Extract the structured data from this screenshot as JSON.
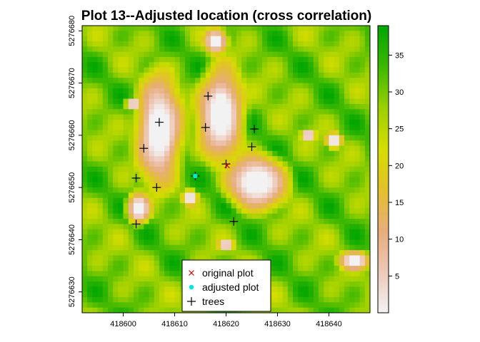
{
  "chart_data": {
    "type": "heatmap",
    "title": "Plot 13--Adjusted location (cross correlation)",
    "xlabel": "",
    "ylabel": "",
    "x_ticks": [
      "418600",
      "418610",
      "418620",
      "418630",
      "418640"
    ],
    "y_ticks": [
      "5276630",
      "5276640",
      "5276650",
      "5276660",
      "5276670",
      "5276680"
    ],
    "xlim": [
      418592,
      418648
    ],
    "ylim": [
      5276626,
      5276681
    ],
    "colorbar": {
      "ticks": [
        "5",
        "10",
        "15",
        "20",
        "25",
        "30",
        "35"
      ],
      "range": [
        0,
        39
      ],
      "colors": [
        "#f2f2f2",
        "#eec8b8",
        "#e6ad7a",
        "#e2c12a",
        "#d6dd00",
        "#9bd000",
        "#3cb800",
        "#00a600"
      ]
    },
    "surface_value_typical": 30,
    "gaps": [
      {
        "x": 418607,
        "y": 5276661,
        "rx": 3.0,
        "ry": 7.0
      },
      {
        "x": 418619,
        "y": 5276664,
        "rx": 3.0,
        "ry": 6.0
      },
      {
        "x": 418626,
        "y": 5276651,
        "rx": 4.0,
        "ry": 3.5
      },
      {
        "x": 418618,
        "y": 5276678,
        "rx": 1.5,
        "ry": 1.6
      },
      {
        "x": 418603,
        "y": 5276646,
        "rx": 1.6,
        "ry": 2.0
      },
      {
        "x": 418645,
        "y": 5276636,
        "rx": 2.0,
        "ry": 1.2
      },
      {
        "x": 418613,
        "y": 5276648,
        "rx": 1.0,
        "ry": 1.0
      },
      {
        "x": 418641,
        "y": 5276659,
        "rx": 1.1,
        "ry": 1.0
      },
      {
        "x": 418636,
        "y": 5276660,
        "rx": 0.9,
        "ry": 0.8
      },
      {
        "x": 418602,
        "y": 5276666,
        "rx": 1.0,
        "ry": 0.8
      },
      {
        "x": 418620,
        "y": 5276639,
        "rx": 1.0,
        "ry": 0.7
      }
    ],
    "trees": [
      {
        "x": 418616.5,
        "y": 5276667.5
      },
      {
        "x": 418607,
        "y": 5276662.5
      },
      {
        "x": 418616,
        "y": 5276661.5
      },
      {
        "x": 418625.5,
        "y": 5276661.2
      },
      {
        "x": 418604,
        "y": 5276657.5
      },
      {
        "x": 418625,
        "y": 5276657.8
      },
      {
        "x": 418620,
        "y": 5276654.5
      },
      {
        "x": 418614,
        "y": 5276652.2
      },
      {
        "x": 418602.5,
        "y": 5276651.8
      },
      {
        "x": 418606.5,
        "y": 5276650.0
      },
      {
        "x": 418602.5,
        "y": 5276643.0
      },
      {
        "x": 418621.5,
        "y": 5276643.5
      }
    ],
    "original_plot": {
      "x": 418620.2,
      "y": 5276654.2
    },
    "adjusted_plot": {
      "x": 418614,
      "y": 5276652.2
    },
    "colors": {
      "original_plot": "#e00000",
      "adjusted_plot": "#00e5e5",
      "trees": "#000000"
    },
    "legend": {
      "position": "bottom",
      "entries": [
        {
          "label": "original plot",
          "marker": "x"
        },
        {
          "label": "adjusted plot",
          "marker": "dot"
        },
        {
          "label": "trees",
          "marker": "plus"
        }
      ]
    }
  }
}
